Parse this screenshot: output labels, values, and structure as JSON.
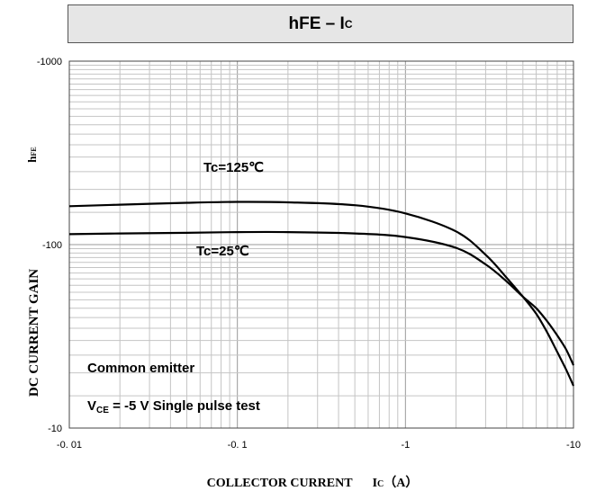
{
  "chart_data": {
    "type": "line",
    "title_main": "hFE – I",
    "title_sub": "C",
    "ylabel": "DC CURRENT GAIN",
    "ylabel_symbol_main": "h",
    "ylabel_symbol_sub": "FE",
    "xlabel": "COLLECTOR CURRENT",
    "xlabel_symbol_main": "I",
    "xlabel_symbol_sub": "C",
    "xlabel_unit": "（A）",
    "x_scale": "log",
    "y_scale": "log",
    "xlim": [
      -0.01,
      -10
    ],
    "ylim": [
      -10,
      -1000
    ],
    "x_ticks": [
      {
        "value": 0.01,
        "label": "-0. 01"
      },
      {
        "value": 0.1,
        "label": "-0. 1"
      },
      {
        "value": 1,
        "label": "-1"
      },
      {
        "value": 10,
        "label": "-10"
      }
    ],
    "y_ticks": [
      {
        "value": 10,
        "label": "-10"
      },
      {
        "value": 100,
        "label": "-100"
      },
      {
        "value": 1000,
        "label": "-1000"
      }
    ],
    "grid": true,
    "series": [
      {
        "name": "Tc=125℃",
        "color": "#000000",
        "x": [
          0.01,
          0.02,
          0.05,
          0.1,
          0.2,
          0.5,
          1,
          2,
          3,
          4,
          5,
          6,
          7,
          8,
          9,
          10
        ],
        "y": [
          162,
          165,
          169,
          171,
          170,
          164,
          148,
          118,
          88,
          66,
          52,
          42,
          33,
          26,
          21,
          17
        ]
      },
      {
        "name": "Tc=25℃",
        "color": "#000000",
        "x": [
          0.01,
          0.02,
          0.05,
          0.1,
          0.2,
          0.5,
          1,
          2,
          3,
          4,
          5,
          6,
          7,
          8,
          9,
          10
        ],
        "y": [
          114,
          115,
          116,
          117,
          117,
          115,
          110,
          96,
          78,
          63,
          52,
          45,
          38,
          32,
          27,
          22
        ]
      }
    ],
    "annotations": {
      "tc125": "Tc=125℃",
      "tc25": "Tc=25℃",
      "common_emitter": "Common emitter",
      "vce_main": "V",
      "vce_sub": "CE",
      "vce_rest": " = -5 V   Single pulse test"
    }
  }
}
